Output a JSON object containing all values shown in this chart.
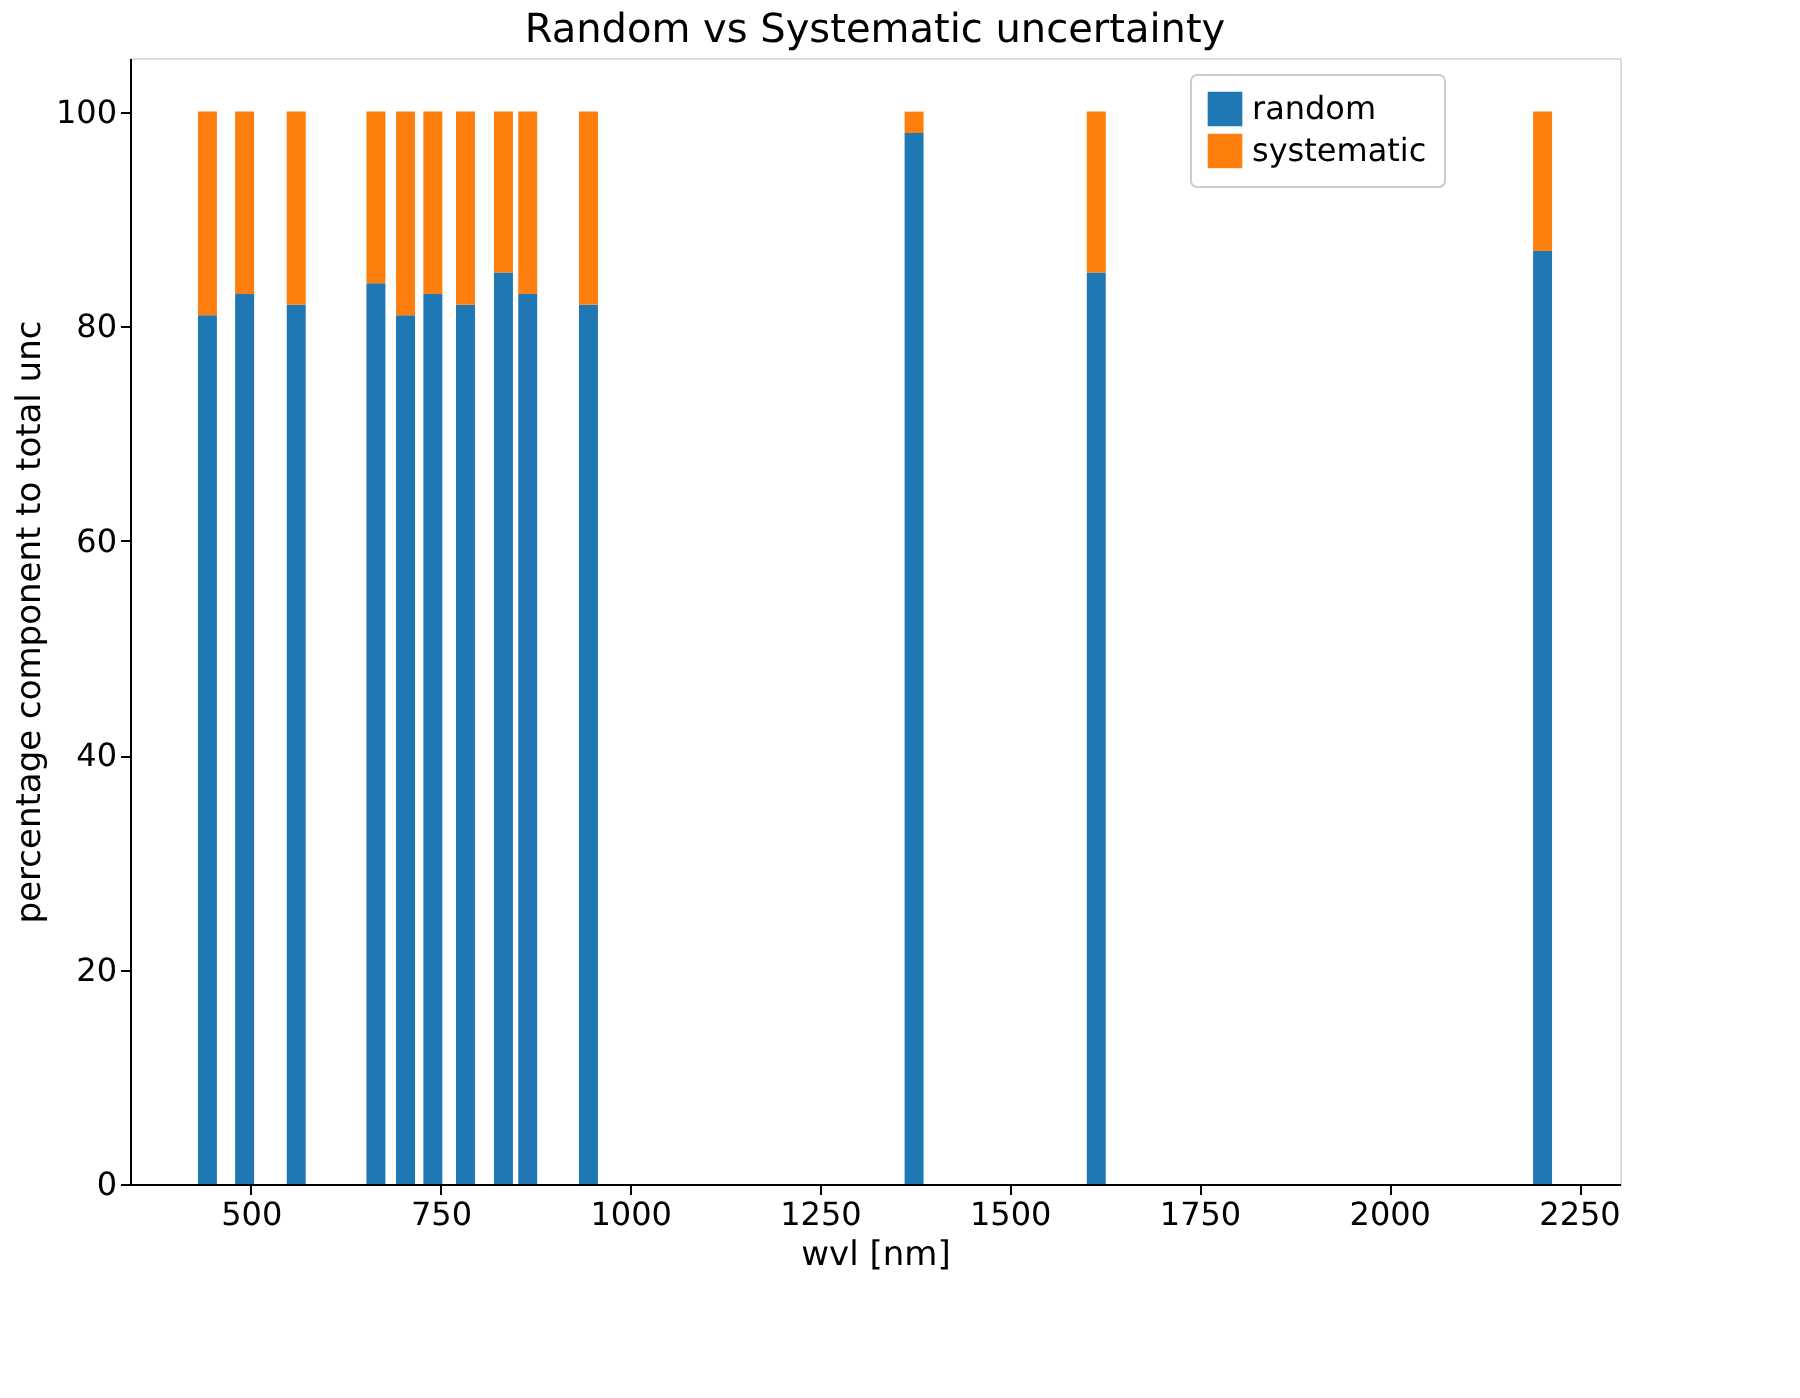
{
  "chart_data": {
    "type": "bar",
    "stacked": true,
    "title": "Random vs Systematic uncertainty",
    "xlabel": "wvl [nm]",
    "ylabel": "percentage component to total unc",
    "x": [
      443,
      492,
      560,
      665,
      704,
      740,
      783,
      833,
      865,
      945,
      1374,
      1614,
      2202
    ],
    "series": [
      {
        "name": "random",
        "color": "#1f77b4",
        "values": [
          81,
          83,
          82,
          84,
          81,
          83,
          82,
          85,
          83,
          82,
          98,
          85,
          87
        ]
      },
      {
        "name": "systematic",
        "color": "#ff7f0e",
        "values": [
          19,
          17,
          18,
          16,
          19,
          17,
          18,
          15,
          17,
          18,
          2,
          15,
          13
        ]
      }
    ],
    "xlim": [
      341,
      2304
    ],
    "xticks": [
      500,
      750,
      1000,
      1250,
      1500,
      1750,
      2000,
      2250
    ],
    "ylim": [
      0,
      105
    ],
    "yticks": [
      0,
      20,
      40,
      60,
      80,
      100
    ],
    "legend": "top right",
    "grid": false
  }
}
